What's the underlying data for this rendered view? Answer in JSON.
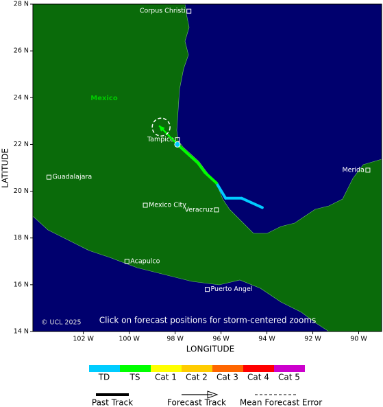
{
  "map": {
    "country_label": "Mexico",
    "copyright": "© UCL 2025",
    "note": "Click on forecast positions for storm-centered zooms",
    "x_axis_label": "LONGITUDE",
    "y_axis_label": "LATITUDE",
    "xlim": [
      -104.2,
      -89.0
    ],
    "ylim": [
      14,
      28
    ],
    "xticks": [
      {
        "value": -102,
        "label": "102 W"
      },
      {
        "value": -100,
        "label": "100 W"
      },
      {
        "value": -98,
        "label": "98 W"
      },
      {
        "value": -96,
        "label": "96 W"
      },
      {
        "value": -94,
        "label": "94 W"
      },
      {
        "value": -92,
        "label": "92 W"
      },
      {
        "value": -90,
        "label": "90 W"
      }
    ],
    "yticks": [
      {
        "value": 28,
        "label": "28 N"
      },
      {
        "value": 26,
        "label": "26 N"
      },
      {
        "value": 24,
        "label": "24 N"
      },
      {
        "value": 22,
        "label": "22 N"
      },
      {
        "value": 20,
        "label": "20 N"
      },
      {
        "value": 18,
        "label": "18 N"
      },
      {
        "value": 16,
        "label": "16 N"
      },
      {
        "value": 14,
        "label": "14 N"
      }
    ],
    "cities": [
      {
        "name": "Corpus Christi",
        "lon": -97.4,
        "lat": 27.7
      },
      {
        "name": "Tampico",
        "lon": -97.9,
        "lat": 22.2
      },
      {
        "name": "Guadalajara",
        "lon": -103.5,
        "lat": 20.6
      },
      {
        "name": "Mexico City",
        "lon": -99.3,
        "lat": 19.4
      },
      {
        "name": "Veracruz",
        "lon": -96.2,
        "lat": 19.2
      },
      {
        "name": "Acapulco",
        "lon": -100.1,
        "lat": 17.0
      },
      {
        "name": "Puerto Angel",
        "lon": -96.6,
        "lat": 15.8
      },
      {
        "name": "Merida",
        "lon": -89.6,
        "lat": 20.9
      }
    ],
    "past_track": [
      {
        "lon": -94.2,
        "lat": 19.3,
        "category": "TD"
      },
      {
        "lon": -95.1,
        "lat": 19.7,
        "category": "TD"
      },
      {
        "lon": -95.8,
        "lat": 19.7,
        "category": "TD"
      },
      {
        "lon": -96.2,
        "lat": 20.35,
        "category": "TD"
      },
      {
        "lon": -96.7,
        "lat": 20.8,
        "category": "TS"
      },
      {
        "lon": -97.0,
        "lat": 21.2,
        "category": "TS"
      },
      {
        "lon": -97.9,
        "lat": 22.0,
        "category": "TS"
      }
    ],
    "forecast": [
      {
        "lon": -98.7,
        "lat": 22.8
      }
    ],
    "intensity_legend": [
      {
        "label": "TD",
        "color": "#00ccff"
      },
      {
        "label": "TS",
        "color": "#00ff00"
      },
      {
        "label": "Cat 1",
        "color": "#ffff00"
      },
      {
        "label": "Cat 2",
        "color": "#ffcc00"
      },
      {
        "label": "Cat 3",
        "color": "#ff6600"
      },
      {
        "label": "Cat 4",
        "color": "#ff0000"
      },
      {
        "label": "Cat 5",
        "color": "#cc00cc"
      }
    ],
    "track_legend": [
      "Past Track",
      "Forecast Track",
      "Mean Forecast Error"
    ]
  }
}
